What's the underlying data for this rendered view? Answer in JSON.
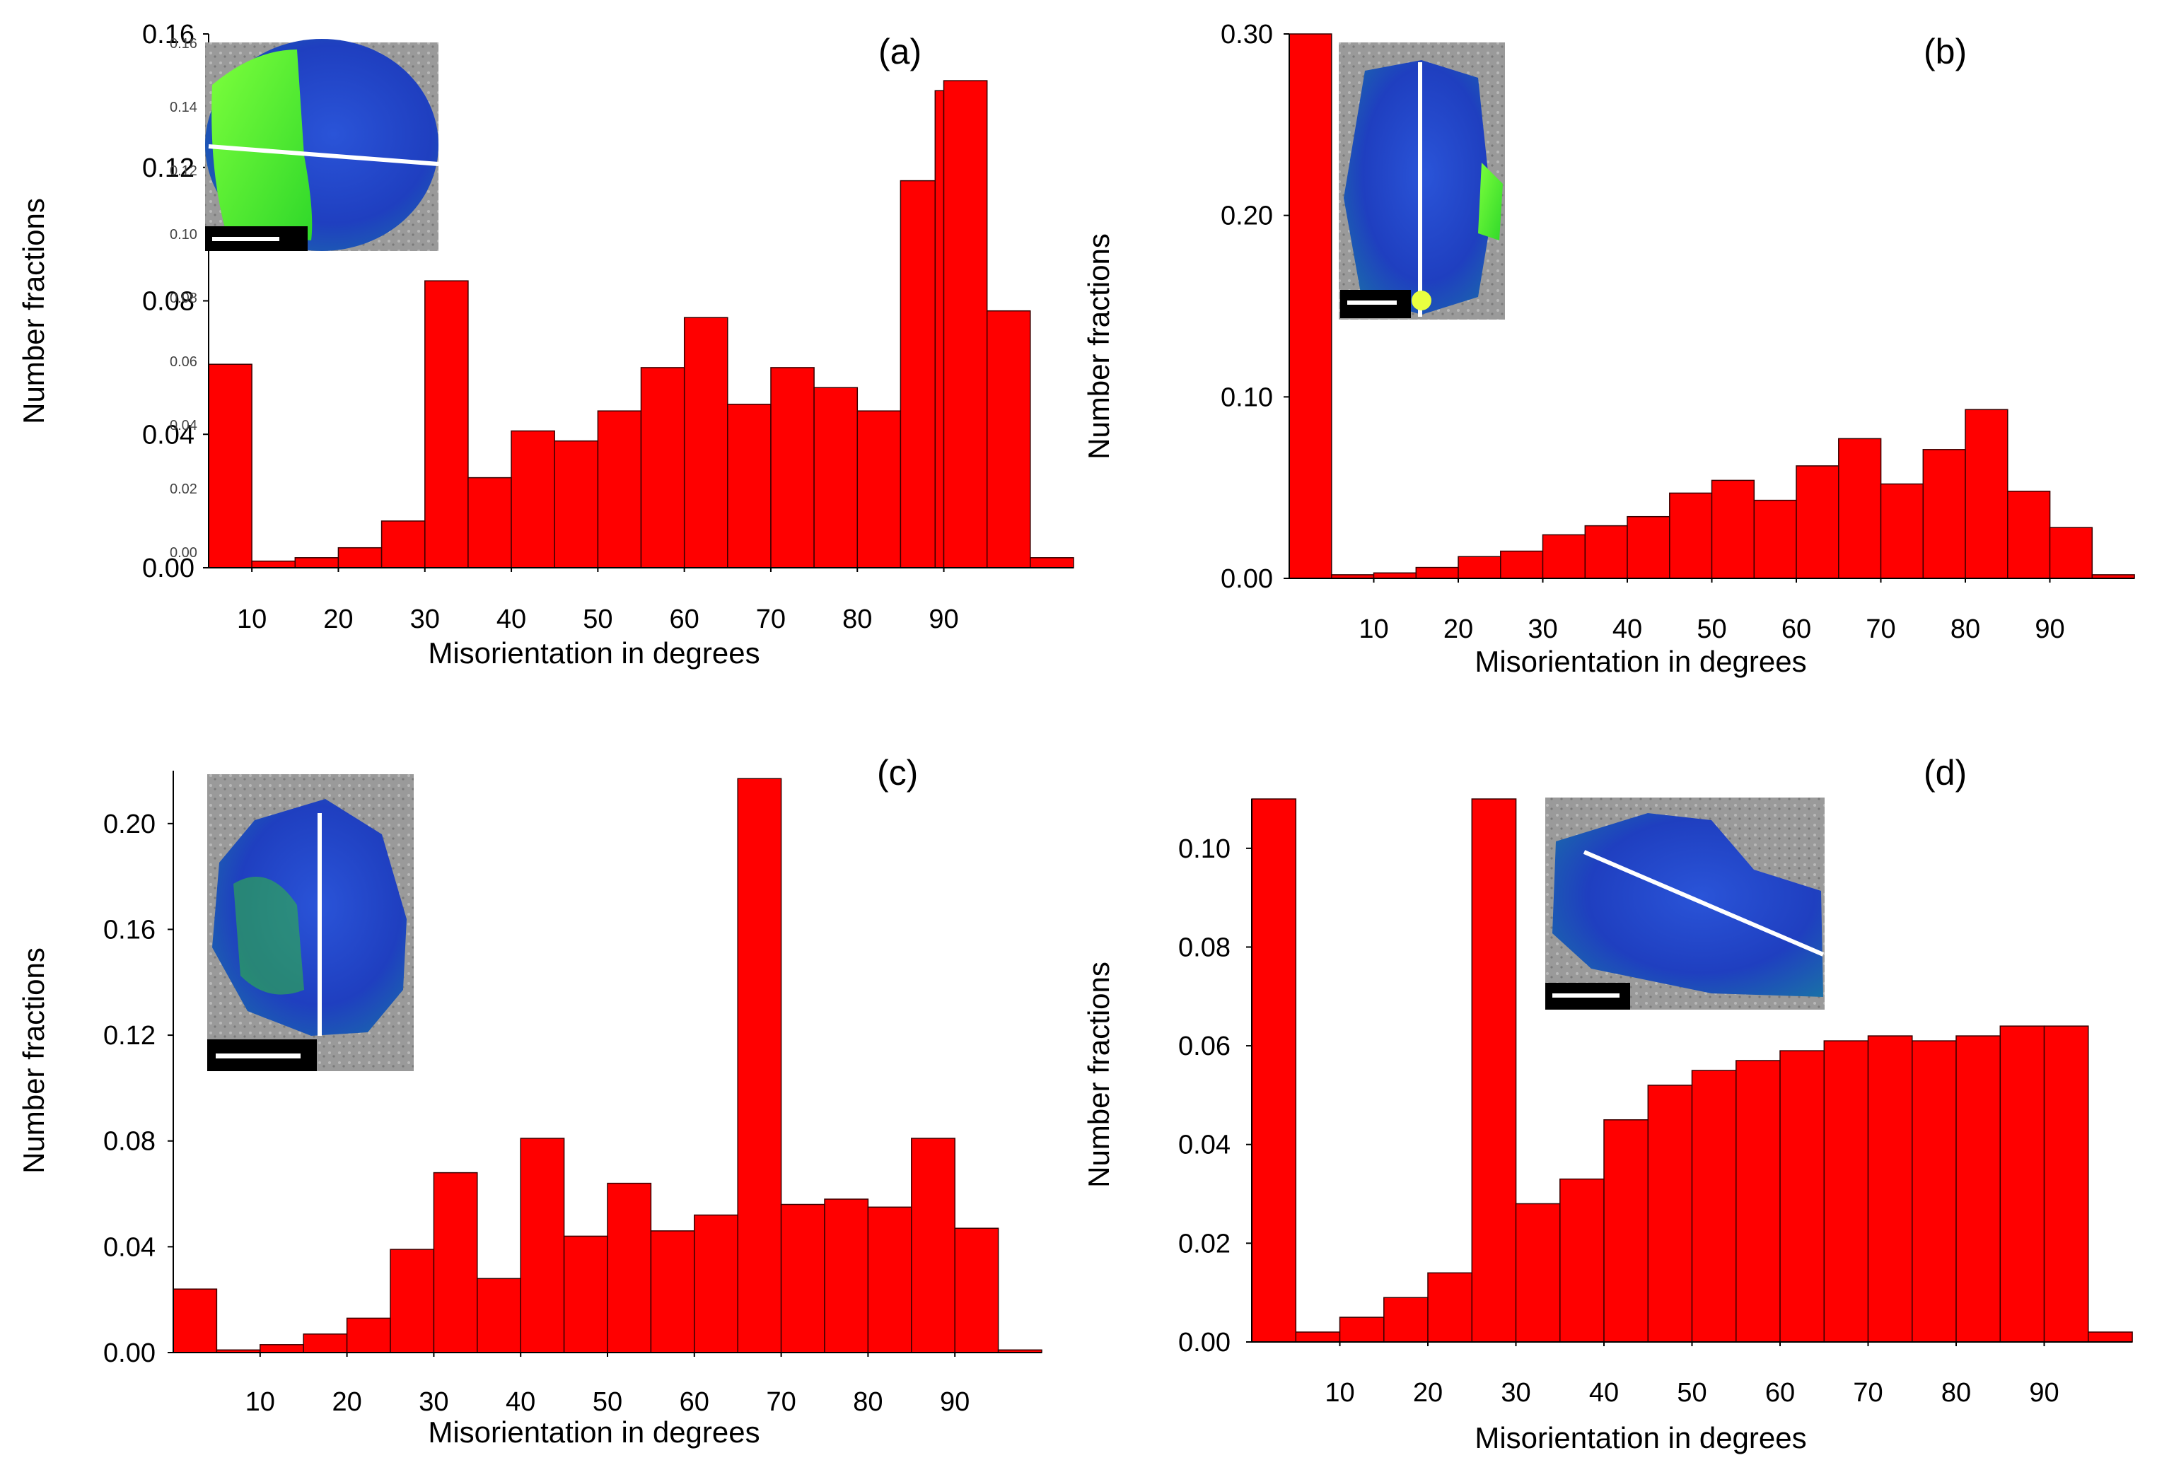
{
  "chart_data": [
    {
      "type": "bar",
      "panel_label": "(a)",
      "xlabel": "Misorientation in degrees",
      "ylabel": "Number fractions",
      "ylim": [
        0,
        0.16
      ],
      "xlim": [
        5,
        105
      ],
      "yticks": [
        "0.00",
        "0.04",
        "0.08",
        "0.12",
        "0.16"
      ],
      "xticks": [
        "10",
        "20",
        "30",
        "40",
        "50",
        "60",
        "70",
        "80",
        "90"
      ],
      "bins": [
        [
          5,
          10
        ],
        [
          10,
          15
        ],
        [
          15,
          20
        ],
        [
          20,
          25
        ],
        [
          25,
          30
        ],
        [
          30,
          35
        ],
        [
          35,
          40
        ],
        [
          40,
          45
        ],
        [
          45,
          50
        ],
        [
          50,
          55
        ],
        [
          55,
          60
        ],
        [
          60,
          65
        ],
        [
          65,
          70
        ],
        [
          70,
          75
        ],
        [
          75,
          80
        ],
        [
          80,
          85
        ],
        [
          85,
          89
        ],
        [
          89,
          90
        ],
        [
          90,
          95
        ],
        [
          95,
          100
        ],
        [
          100,
          105
        ]
      ],
      "values": [
        0.061,
        0.002,
        0.003,
        0.006,
        0.014,
        0.086,
        0.027,
        0.041,
        0.038,
        0.047,
        0.06,
        0.075,
        0.049,
        0.06,
        0.054,
        0.047,
        0.116,
        0.143,
        0.146,
        0.077,
        0.003
      ],
      "bar_color": "#ff0000",
      "inset": {
        "type": "EBSD orientation map",
        "line": "horizontal",
        "ghost_ticks": [
          "0.16",
          "0.14",
          "0.12",
          "0.10",
          "0.08",
          "0.06",
          "0.04",
          "0.02",
          "0.00"
        ]
      }
    },
    {
      "type": "bar",
      "panel_label": "(b)",
      "xlabel": "Misorientation in degrees",
      "ylabel": "Number fractions",
      "ylim": [
        0,
        0.3
      ],
      "xlim": [
        0,
        100
      ],
      "yticks": [
        "0.00",
        "0.10",
        "0.20",
        "0.30"
      ],
      "xticks": [
        "10",
        "20",
        "30",
        "40",
        "50",
        "60",
        "70",
        "80",
        "90"
      ],
      "bins": [
        [
          0,
          5
        ],
        [
          5,
          10
        ],
        [
          10,
          15
        ],
        [
          15,
          20
        ],
        [
          20,
          25
        ],
        [
          25,
          30
        ],
        [
          30,
          35
        ],
        [
          35,
          40
        ],
        [
          40,
          45
        ],
        [
          45,
          50
        ],
        [
          50,
          55
        ],
        [
          55,
          60
        ],
        [
          60,
          65
        ],
        [
          65,
          70
        ],
        [
          70,
          75
        ],
        [
          75,
          80
        ],
        [
          80,
          85
        ],
        [
          85,
          90
        ],
        [
          90,
          95
        ],
        [
          95,
          100
        ]
      ],
      "values": [
        0.3,
        0.002,
        0.003,
        0.006,
        0.012,
        0.015,
        0.024,
        0.029,
        0.034,
        0.047,
        0.054,
        0.043,
        0.062,
        0.077,
        0.052,
        0.071,
        0.093,
        0.048,
        0.028,
        0.002
      ],
      "bar_color": "#ff0000",
      "inset": {
        "type": "EBSD orientation map",
        "line": "vertical"
      }
    },
    {
      "type": "bar",
      "panel_label": "(c)",
      "xlabel": "Misorientation in degrees",
      "ylabel": "Number fractions",
      "ylim": [
        0,
        0.22
      ],
      "xlim": [
        0,
        100
      ],
      "yticks": [
        "0.00",
        "0.04",
        "0.08",
        "0.12",
        "0.16",
        "0.20"
      ],
      "xticks": [
        "10",
        "20",
        "30",
        "40",
        "50",
        "60",
        "70",
        "80",
        "90"
      ],
      "bins": [
        [
          0,
          5
        ],
        [
          5,
          10
        ],
        [
          10,
          15
        ],
        [
          15,
          20
        ],
        [
          20,
          25
        ],
        [
          25,
          30
        ],
        [
          30,
          35
        ],
        [
          35,
          40
        ],
        [
          40,
          45
        ],
        [
          45,
          50
        ],
        [
          50,
          55
        ],
        [
          55,
          60
        ],
        [
          60,
          65
        ],
        [
          65,
          70
        ],
        [
          70,
          75
        ],
        [
          75,
          80
        ],
        [
          80,
          85
        ],
        [
          85,
          90
        ],
        [
          90,
          95
        ],
        [
          95,
          100
        ]
      ],
      "values": [
        0.024,
        0.001,
        0.003,
        0.007,
        0.013,
        0.039,
        0.068,
        0.028,
        0.081,
        0.044,
        0.064,
        0.046,
        0.052,
        0.217,
        0.056,
        0.058,
        0.055,
        0.081,
        0.047,
        0.001
      ],
      "bar_color": "#ff0000",
      "inset": {
        "type": "EBSD orientation map",
        "line": "vertical"
      }
    },
    {
      "type": "bar",
      "panel_label": "(d)",
      "xlabel": "Misorientation in degrees",
      "ylabel": "Number fractions",
      "ylim": [
        0,
        0.11
      ],
      "xlim": [
        0,
        100
      ],
      "yticks": [
        "0.00",
        "0.02",
        "0.04",
        "0.06",
        "0.08",
        "0.10"
      ],
      "xticks": [
        "10",
        "20",
        "30",
        "40",
        "50",
        "60",
        "70",
        "80",
        "90"
      ],
      "bins": [
        [
          0,
          5
        ],
        [
          5,
          10
        ],
        [
          10,
          15
        ],
        [
          15,
          20
        ],
        [
          20,
          25
        ],
        [
          25,
          30
        ],
        [
          30,
          35
        ],
        [
          35,
          40
        ],
        [
          40,
          45
        ],
        [
          45,
          50
        ],
        [
          50,
          55
        ],
        [
          55,
          60
        ],
        [
          60,
          65
        ],
        [
          65,
          70
        ],
        [
          70,
          75
        ],
        [
          75,
          80
        ],
        [
          80,
          85
        ],
        [
          85,
          90
        ],
        [
          90,
          95
        ],
        [
          95,
          100
        ]
      ],
      "values": [
        0.11,
        0.002,
        0.005,
        0.009,
        0.014,
        0.11,
        0.028,
        0.033,
        0.045,
        0.052,
        0.055,
        0.057,
        0.059,
        0.061,
        0.062,
        0.061,
        0.062,
        0.064,
        0.064,
        0.002
      ],
      "bar_color": "#ff0000",
      "inset": {
        "type": "EBSD orientation map",
        "line": "diagonal"
      }
    }
  ]
}
